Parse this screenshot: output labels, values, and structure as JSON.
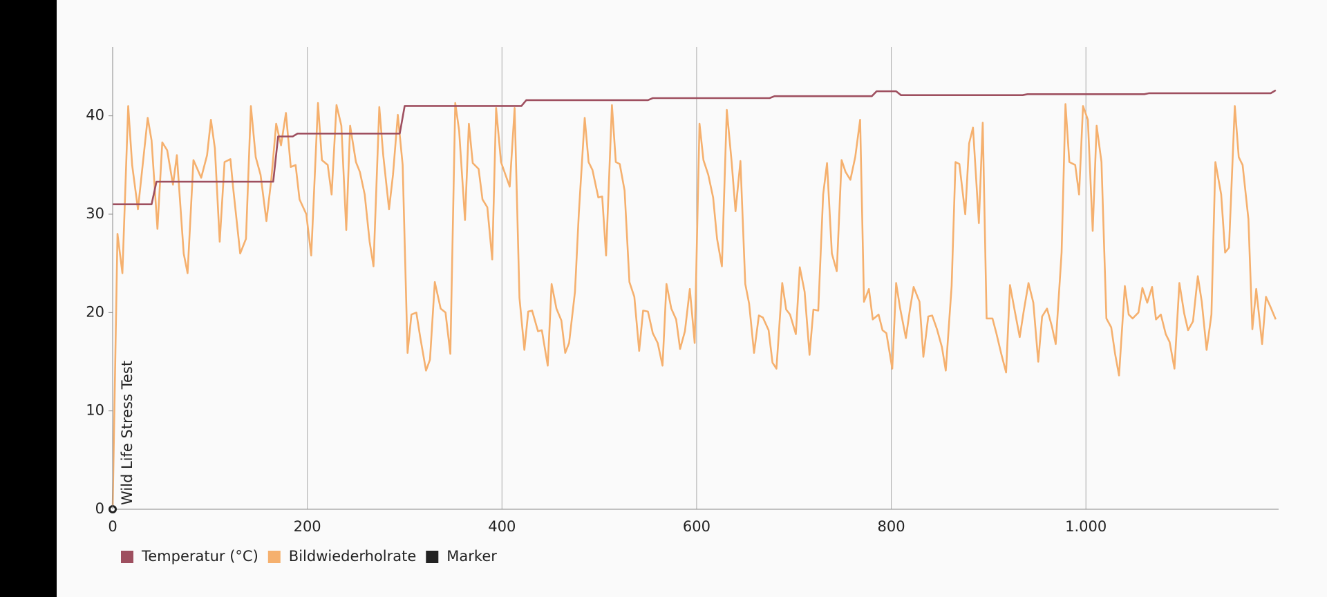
{
  "chart_data": {
    "type": "line",
    "xlim": [
      0,
      1198
    ],
    "xticks": [
      0,
      200,
      400,
      600,
      800,
      {
        "value": 1000,
        "label": "1.000"
      }
    ],
    "ylim": [
      0,
      47
    ],
    "yticks": [
      0,
      10,
      20,
      30,
      40
    ],
    "grid": true,
    "legend": "bottom-left",
    "series": [
      {
        "name": "Temperatur (°C)",
        "color": "#9e4f5f",
        "x": [
          0,
          40,
          45,
          165,
          170,
          185,
          190,
          295,
          300,
          420,
          425,
          550,
          555,
          675,
          680,
          780,
          785,
          805,
          810,
          935,
          940,
          1060,
          1065,
          1190,
          1195
        ],
        "values": [
          31,
          31,
          33.3,
          33.3,
          37.9,
          37.9,
          38.2,
          38.2,
          41,
          41,
          41.6,
          41.6,
          41.8,
          41.8,
          42,
          42,
          42.5,
          42.5,
          42.1,
          42.1,
          42.2,
          42.2,
          42.3,
          42.3,
          42.6
        ]
      },
      {
        "name": "Bildwiederholrate",
        "color": "#f5b06e",
        "x": [
          0,
          5,
          10,
          16,
          20,
          26,
          36,
          40,
          46,
          51,
          56,
          62,
          66,
          73,
          77,
          83,
          91,
          97,
          101,
          105,
          110,
          115,
          121,
          124,
          131,
          137,
          142,
          147,
          152,
          158,
          163,
          168,
          173,
          178,
          183,
          188,
          192,
          199,
          204,
          211,
          215,
          221,
          225,
          230,
          235,
          240,
          244,
          250,
          254,
          259,
          264,
          268,
          274,
          278,
          284,
          288,
          293,
          298,
          303,
          307,
          312,
          316,
          322,
          326,
          331,
          337,
          342,
          347,
          352,
          356,
          362,
          366,
          370,
          376,
          380,
          385,
          390,
          394,
          399,
          404,
          408,
          413,
          418,
          423,
          427,
          431,
          437,
          441,
          447,
          451,
          456,
          461,
          465,
          469,
          475,
          479,
          485,
          489,
          493,
          499,
          503,
          507,
          513,
          517,
          521,
          526,
          531,
          536,
          541,
          545,
          550,
          555,
          560,
          565,
          569,
          574,
          579,
          583,
          588,
          593,
          598,
          603,
          607,
          612,
          617,
          621,
          626,
          631,
          636,
          640,
          645,
          650,
          654,
          659,
          664,
          668,
          674,
          678,
          682,
          688,
          692,
          696,
          702,
          706,
          711,
          716,
          720,
          725,
          730,
          734,
          739,
          744,
          749,
          753,
          758,
          763,
          768,
          772,
          777,
          781,
          787,
          791,
          795,
          801,
          805,
          809,
          815,
          819,
          823,
          829,
          833,
          838,
          842,
          847,
          852,
          856,
          862,
          866,
          870,
          876,
          880,
          884,
          890,
          894,
          898,
          904,
          908,
          913,
          918,
          922,
          927,
          932,
          936,
          941,
          946,
          951,
          955,
          960,
          965,
          969,
          975,
          979,
          983,
          989,
          993,
          997,
          1002,
          1007,
          1011,
          1016,
          1021,
          1026,
          1030,
          1034,
          1040,
          1044,
          1048,
          1054,
          1058,
          1063,
          1068,
          1072,
          1077,
          1082,
          1086,
          1091,
          1096,
          1101,
          1105,
          1110,
          1115,
          1119,
          1124,
          1129,
          1133,
          1139,
          1143,
          1147,
          1153,
          1157,
          1161,
          1167,
          1171,
          1175,
          1181,
          1185,
          1190,
          1195
        ],
        "values": [
          0,
          28,
          24,
          41,
          35,
          30.5,
          39.8,
          37.5,
          28.5,
          37.3,
          36.5,
          33,
          36,
          26,
          24,
          35.5,
          33.7,
          36,
          39.6,
          36.7,
          27.2,
          35.3,
          35.6,
          32.5,
          26,
          27.5,
          41,
          35.8,
          34,
          29.3,
          33.5,
          39.2,
          37,
          40.3,
          34.8,
          35,
          31.5,
          30,
          25.8,
          41.3,
          35.5,
          35,
          32,
          41.1,
          39,
          28.4,
          39,
          35.3,
          34.3,
          32,
          27.2,
          24.7,
          40.9,
          36,
          30.5,
          34,
          40.1,
          35,
          15.9,
          19.8,
          20,
          17.5,
          14.1,
          15.2,
          23.1,
          20.4,
          20,
          15.8,
          41.3,
          38.5,
          29.4,
          39.2,
          35.2,
          34.6,
          31.5,
          30.7,
          25.4,
          40.8,
          35.3,
          33.9,
          32.8,
          40.8,
          21.5,
          16.2,
          20.1,
          20.2,
          18.1,
          18.2,
          14.6,
          22.9,
          20.4,
          19.2,
          15.9,
          16.9,
          22.1,
          30.1,
          39.8,
          35.3,
          34.5,
          31.7,
          31.8,
          25.8,
          41.1,
          35.3,
          35.1,
          32.4,
          23.1,
          21.6,
          16.1,
          20.2,
          20.1,
          17.9,
          16.9,
          14.6,
          22.9,
          20.4,
          19.3,
          16.3,
          18.1,
          22.4,
          16.9,
          39.2,
          35.5,
          34,
          31.7,
          27.5,
          24.7,
          40.6,
          35.3,
          30.3,
          35.4,
          22.9,
          20.9,
          15.9,
          19.7,
          19.5,
          18.2,
          14.9,
          14.3,
          23,
          20.3,
          19.8,
          17.8,
          24.6,
          22.1,
          15.7,
          20.3,
          20.2,
          32,
          35.2,
          26,
          24.2,
          35.5,
          34.3,
          33.5,
          35.8,
          39.6,
          21.1,
          22.4,
          19.3,
          19.8,
          18.2,
          17.9,
          14.3,
          23,
          20.5,
          17.4,
          20.2,
          22.6,
          21.1,
          15.5,
          19.6,
          19.7,
          18.3,
          16.5,
          14.1,
          22.7,
          35.3,
          35.1,
          30,
          37.2,
          38.8,
          29.1,
          39.3,
          19.4,
          19.4,
          17.9,
          15.8,
          13.9,
          22.8,
          20.1,
          17.5,
          20.1,
          23,
          21,
          15,
          19.6,
          20.4,
          18.6,
          16.8,
          26.1,
          41.2,
          35.3,
          35,
          32,
          41,
          39.6,
          28.3,
          39,
          35.3,
          19.4,
          18.5,
          15.8,
          13.6,
          22.7,
          19.8,
          19.4,
          20,
          22.5,
          21,
          22.6,
          19.3,
          19.8,
          17.8,
          17,
          14.3,
          23,
          19.9,
          18.2,
          19.1,
          23.7,
          21.1,
          16.2,
          19.8,
          35.3,
          32,
          26.1,
          26.6,
          41,
          35.8,
          35,
          29.5,
          18.3,
          22.4,
          16.8,
          21.6,
          20.5,
          19.3
        ]
      },
      {
        "name": "Marker",
        "color": "#222222",
        "x": [
          0
        ],
        "values": [
          0
        ],
        "labels": [
          "Wild Life Stress Test"
        ]
      }
    ]
  }
}
